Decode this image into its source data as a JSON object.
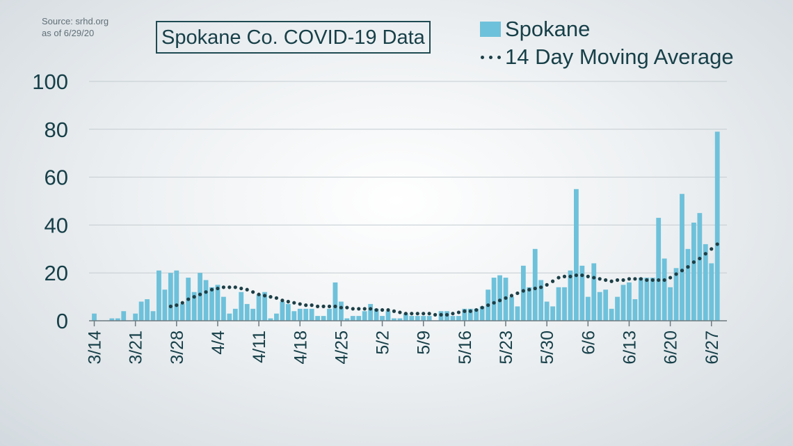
{
  "source_note": {
    "line1": "Source: srhd.org",
    "line2": "as of 6/29/20"
  },
  "colors": {
    "bar": "#6ec1da",
    "dots": "#1d3f47",
    "grid": "#c3ccd1",
    "text": "#174049"
  },
  "chart_data": {
    "type": "bar",
    "title": "Spokane Co. COVID-19 Data",
    "ylim": [
      0,
      100
    ],
    "yticks": [
      0,
      20,
      40,
      60,
      80,
      100
    ],
    "xtick_labels": [
      "3/14",
      "3/21",
      "3/28",
      "4/4",
      "4/11",
      "4/18",
      "4/25",
      "5/2",
      "5/9",
      "5/16",
      "5/23",
      "5/30",
      "6/6",
      "6/13",
      "6/20",
      "6/27"
    ],
    "legend_position": "top-right",
    "grid": true,
    "series": [
      {
        "name": "Spokane",
        "kind": "bar",
        "start_date": "3/14",
        "values": [
          3,
          0,
          0,
          1,
          1,
          4,
          0,
          3,
          8,
          9,
          4,
          21,
          13,
          20,
          21,
          7,
          18,
          12,
          20,
          17,
          14,
          15,
          10,
          3,
          5,
          12,
          7,
          5,
          11,
          12,
          1,
          3,
          8,
          7,
          4,
          5,
          5,
          5,
          2,
          2,
          5,
          16,
          8,
          1,
          2,
          2,
          4,
          7,
          5,
          2,
          4,
          1,
          1,
          3,
          2,
          2,
          2,
          2,
          0,
          4,
          4,
          2,
          2,
          5,
          5,
          5,
          6,
          13,
          18,
          19,
          18,
          10,
          6,
          23,
          14,
          30,
          17,
          8,
          6,
          14,
          14,
          21,
          55,
          23,
          10,
          24,
          12,
          13,
          5,
          10,
          15,
          16,
          9,
          18,
          18,
          18,
          43,
          26,
          14,
          22,
          53,
          30,
          41,
          45,
          32,
          24,
          79
        ]
      },
      {
        "name": "14 Day Moving Average",
        "kind": "dotted-line",
        "start_date": "3/27",
        "values": [
          6,
          6.5,
          7.5,
          9,
          10,
          11,
          12,
          13,
          13.5,
          14,
          14,
          14,
          13.5,
          13,
          12,
          11,
          10.5,
          10,
          9.5,
          8.5,
          8,
          7.5,
          7,
          6.5,
          6.5,
          6,
          6,
          6,
          6,
          5.5,
          5.5,
          5,
          5,
          5,
          5,
          4.5,
          4.5,
          4.5,
          4,
          3.5,
          3,
          3,
          3,
          3,
          3,
          2.5,
          2.5,
          2.5,
          3,
          3.5,
          4,
          4,
          4.5,
          5.5,
          6.5,
          7.5,
          8.5,
          9.5,
          10.5,
          11.5,
          12.5,
          13,
          13.5,
          14,
          15,
          16.5,
          18,
          18.5,
          18.5,
          19,
          19,
          18.5,
          18,
          17.5,
          17,
          16.5,
          17,
          17,
          17.5,
          17.5,
          17.5,
          17,
          17,
          17,
          17,
          18,
          19.5,
          21,
          22.5,
          24.5,
          26,
          28,
          30,
          32
        ]
      }
    ]
  }
}
